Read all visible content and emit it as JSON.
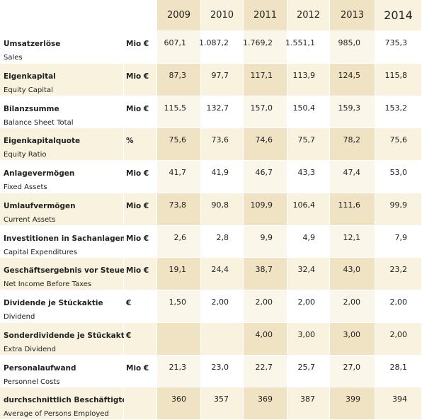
{
  "table": {
    "columns": [
      "2009",
      "2010",
      "2011",
      "2012",
      "2013",
      "2014"
    ],
    "rows": [
      {
        "label": "Umsatzerlöse",
        "sublabel": "Sales",
        "unit": "Mio €",
        "values": [
          "607,1",
          "1.087,2",
          "1.769,2",
          "1.551,1",
          "985,0",
          "735,3"
        ]
      },
      {
        "label": "Eigenkapital",
        "sublabel": "Equity Capital",
        "unit": "Mio €",
        "values": [
          "87,3",
          "97,7",
          "117,1",
          "113,9",
          "124,5",
          "115,8"
        ]
      },
      {
        "label": "Bilanzsumme",
        "sublabel": "Balance Sheet Total",
        "unit": "Mio €",
        "values": [
          "115,5",
          "132,7",
          "157,0",
          "150,4",
          "159,3",
          "153,2"
        ]
      },
      {
        "label": "Eigenkapitalquote",
        "sublabel": "Equity Ratio",
        "unit": "%",
        "values": [
          "75,6",
          "73,6",
          "74,6",
          "75,7",
          "78,2",
          "75,6"
        ]
      },
      {
        "label": "Anlagevermögen",
        "sublabel": "Fixed Assets",
        "unit": "Mio €",
        "values": [
          "41,7",
          "41,9",
          "46,7",
          "43,3",
          "47,4",
          "53,0"
        ]
      },
      {
        "label": "Umlaufvermögen",
        "sublabel": "Current Assets",
        "unit": "Mio €",
        "values": [
          "73,8",
          "90,8",
          "109,9",
          "106,4",
          "111,6",
          "99,9"
        ]
      },
      {
        "label": "Investitionen in Sachanlagen",
        "sublabel": "Capital Expenditures",
        "unit": "Mio €",
        "values": [
          "2,6",
          "2,8",
          "9,9",
          "4,9",
          "12,1",
          "7,9"
        ]
      },
      {
        "label": "Geschäftsergebnis vor Steuern",
        "sublabel": "Net Income Before Taxes",
        "unit": "Mio €",
        "values": [
          "19,1",
          "24,4",
          "38,7",
          "32,4",
          "43,0",
          "23,2"
        ]
      },
      {
        "label": "Dividende je Stückaktie",
        "sublabel": "Dividend",
        "unit": "€",
        "values": [
          "1,50",
          "2,00",
          "2,00",
          "2,00",
          "2,00",
          "2,00"
        ]
      },
      {
        "label": "Sonderdividende je Stückaktie",
        "sublabel": "Extra Dividend",
        "unit": "€",
        "values": [
          null,
          null,
          "4,00",
          "3,00",
          "3,00",
          "2,00"
        ]
      },
      {
        "label": "Personalaufwand",
        "sublabel": "Personnel Costs",
        "unit": "Mio €",
        "values": [
          "21,3",
          "23,0",
          "22,7",
          "25,7",
          "27,0",
          "28,1"
        ]
      },
      {
        "label": "durchschnittlich Beschäftigte",
        "sublabel": "Average of Persons Employed",
        "unit": null,
        "values": [
          "360",
          "357",
          "369",
          "387",
          "399",
          "394"
        ]
      }
    ]
  }
}
